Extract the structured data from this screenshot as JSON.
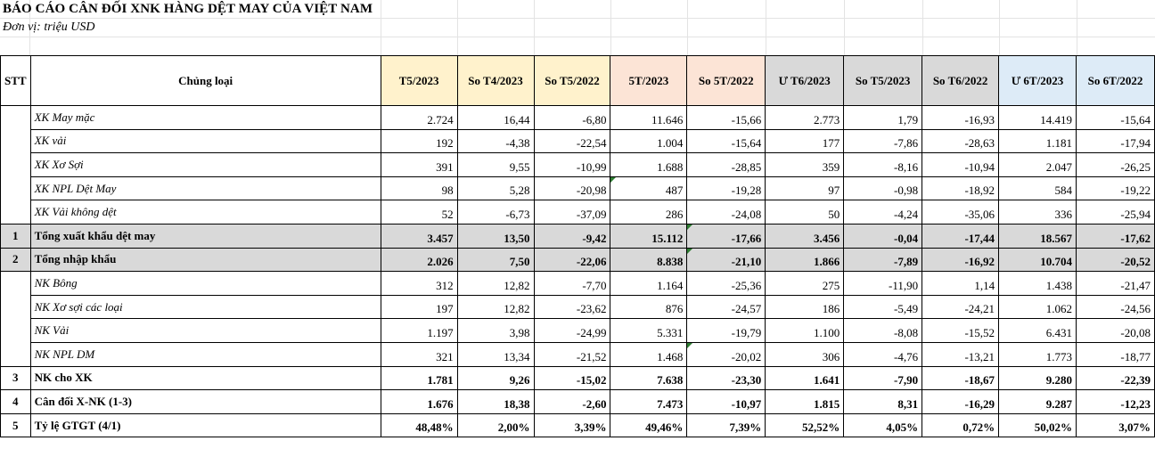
{
  "title": "BÁO CÁO CÂN ĐỐI XNK HÀNG DỆT MAY CỦA VIỆT NAM",
  "unit": "Đơn vị: triệu USD",
  "headers": [
    "STT",
    "Chủng loại",
    "T5/2023",
    "So T4/2023",
    "So T5/2022",
    "5T/2023",
    "So 5T/2022",
    "Ư T6/2023",
    "So T5/2023",
    "So T6/2022",
    "Ư 6T/2023",
    "So 6T/2022"
  ],
  "rows": [
    {
      "stt": "",
      "name": "XK May mặc",
      "values": [
        "2.724",
        "16,44",
        "-6,80",
        "11.646",
        "-15,66",
        "2.773",
        "1,79",
        "-16,93",
        "14.419",
        "-15,64"
      ]
    },
    {
      "stt": "",
      "name": "XK vải",
      "values": [
        "192",
        "-4,38",
        "-22,54",
        "1.004",
        "-15,64",
        "177",
        "-7,86",
        "-28,63",
        "1.181",
        "-17,94"
      ]
    },
    {
      "stt": "",
      "name": "XK Xơ Sợi",
      "values": [
        "391",
        "9,55",
        "-10,99",
        "1.688",
        "-28,85",
        "359",
        "-8,16",
        "-10,94",
        "2.047",
        "-26,25"
      ]
    },
    {
      "stt": "",
      "name": "XK NPL Dệt May",
      "values": [
        "98",
        "5,28",
        "-20,98",
        "487",
        "-19,28",
        "97",
        "-0,98",
        "-18,92",
        "584",
        "-19,22"
      ]
    },
    {
      "stt": "",
      "name": "XK Vải không dệt",
      "values": [
        "52",
        "-6,73",
        "-37,09",
        "286",
        "-24,08",
        "50",
        "-4,24",
        "-35,06",
        "336",
        "-25,94"
      ]
    },
    {
      "stt": "1",
      "name": "Tổng xuất khẩu dệt may",
      "values": [
        "3.457",
        "13,50",
        "-9,42",
        "15.112",
        "-17,66",
        "3.456",
        "-0,04",
        "-17,44",
        "18.567",
        "-17,62"
      ]
    },
    {
      "stt": "2",
      "name": "Tổng nhập khẩu",
      "values": [
        "2.026",
        "7,50",
        "-22,06",
        "8.838",
        "-21,10",
        "1.866",
        "-7,89",
        "-16,92",
        "10.704",
        "-20,52"
      ]
    },
    {
      "stt": "",
      "name": "NK Bông",
      "values": [
        "312",
        "12,82",
        "-7,70",
        "1.164",
        "-25,36",
        "275",
        "-11,90",
        "1,14",
        "1.438",
        "-21,47"
      ]
    },
    {
      "stt": "",
      "name": "NK Xơ sợi các loại",
      "values": [
        "197",
        "12,82",
        "-23,62",
        "876",
        "-24,57",
        "186",
        "-5,49",
        "-24,21",
        "1.062",
        "-24,56"
      ]
    },
    {
      "stt": "",
      "name": "NK Vải",
      "values": [
        "1.197",
        "3,98",
        "-24,99",
        "5.331",
        "-19,79",
        "1.100",
        "-8,08",
        "-15,52",
        "6.431",
        "-20,08"
      ]
    },
    {
      "stt": "",
      "name": "NK NPL DM",
      "values": [
        "321",
        "13,34",
        "-21,52",
        "1.468",
        "-20,02",
        "306",
        "-4,76",
        "-13,21",
        "1.773",
        "-18,77"
      ]
    },
    {
      "stt": "3",
      "name": "NK cho XK",
      "values": [
        "1.781",
        "9,26",
        "-15,02",
        "7.638",
        "-23,30",
        "1.641",
        "-7,90",
        "-18,67",
        "9.280",
        "-22,39"
      ]
    },
    {
      "stt": "4",
      "name": "Cân đối X-NK (1-3)",
      "values": [
        "1.676",
        "18,38",
        "-2,60",
        "7.473",
        "-10,97",
        "1.815",
        "8,31",
        "-16,29",
        "9.287",
        "-12,23"
      ]
    },
    {
      "stt": "5",
      "name": "Tỷ lệ GTGT (4/1)",
      "values": [
        "48,48%",
        "2,00%",
        "3,39%",
        "49,46%",
        "7,39%",
        "52,52%",
        "4,05%",
        "0,72%",
        "50,02%",
        "3,07%"
      ]
    }
  ],
  "colors": {
    "header_yellow": "#fff2cc",
    "header_peach": "#fce4d6",
    "header_grey": "#d9d9d9",
    "header_blue": "#ddebf7",
    "total_row": "#d9d9d9",
    "comment_marker": "#2e7d32"
  }
}
